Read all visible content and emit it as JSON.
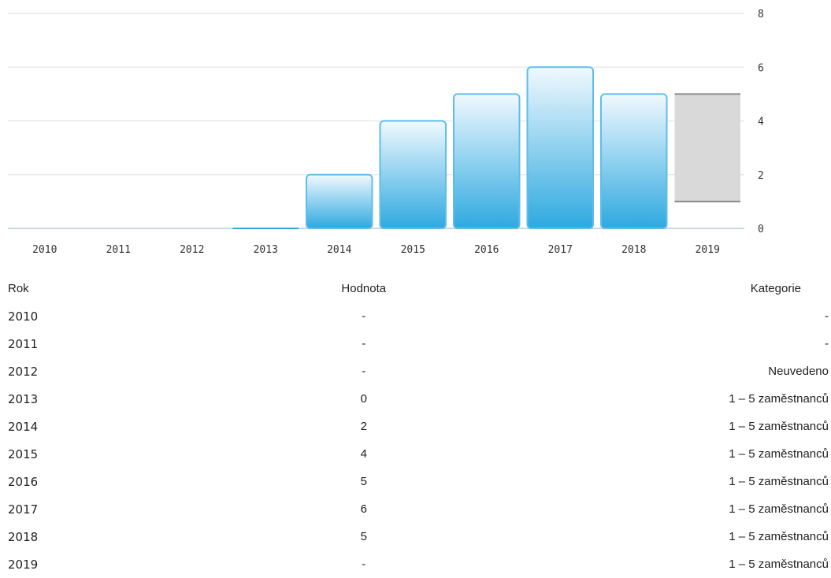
{
  "chart_data": {
    "type": "bar",
    "categories": [
      "2010",
      "2011",
      "2012",
      "2013",
      "2014",
      "2015",
      "2016",
      "2017",
      "2018",
      "2019"
    ],
    "values": [
      null,
      null,
      null,
      0,
      2,
      4,
      5,
      6,
      5,
      null
    ],
    "range": {
      "category": "2019",
      "low": 1,
      "high": 5
    },
    "ylim": [
      0,
      8
    ],
    "yticks": [
      0,
      2,
      4,
      6,
      8
    ],
    "grid": true,
    "y_axis_side": "right",
    "colors": {
      "bar_top": "#f1f9fe",
      "bar_bottom": "#2ea9e0",
      "bar_stroke": "#5fbde9",
      "range_fill": "#d9d9d9",
      "range_stroke": "#8a8a8a",
      "grid": "#e9e9e9",
      "axis": "#c9d6e0"
    }
  },
  "table": {
    "headers": {
      "year": "Rok",
      "value": "Hodnota",
      "category": "Kategorie"
    },
    "rows": [
      {
        "year": "2010",
        "value": "-",
        "category": "-"
      },
      {
        "year": "2011",
        "value": "-",
        "category": "-"
      },
      {
        "year": "2012",
        "value": "-",
        "category": "Neuvedeno"
      },
      {
        "year": "2013",
        "value": "0",
        "category": "1 – 5 zaměstnanců"
      },
      {
        "year": "2014",
        "value": "2",
        "category": "1 – 5 zaměstnanců"
      },
      {
        "year": "2015",
        "value": "4",
        "category": "1 – 5 zaměstnanců"
      },
      {
        "year": "2016",
        "value": "5",
        "category": "1 – 5 zaměstnanců"
      },
      {
        "year": "2017",
        "value": "6",
        "category": "1 – 5 zaměstnanců"
      },
      {
        "year": "2018",
        "value": "5",
        "category": "1 – 5 zaměstnanců"
      },
      {
        "year": "2019",
        "value": "-",
        "category": "1 – 5 zaměstnanců"
      }
    ]
  }
}
